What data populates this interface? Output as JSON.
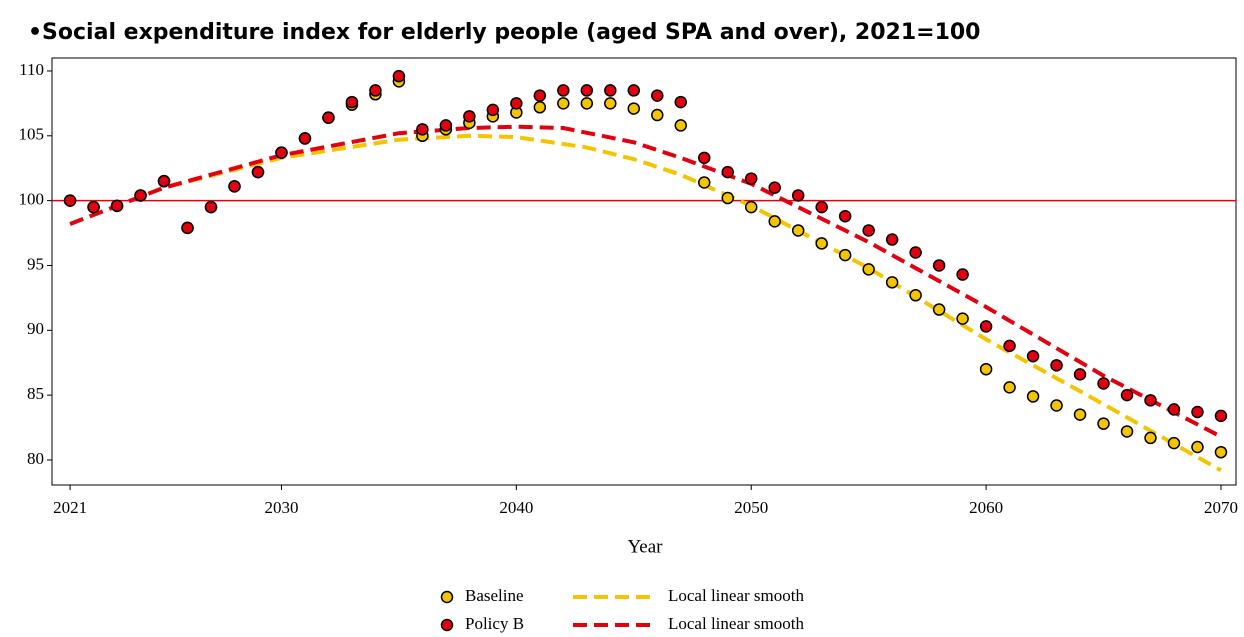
{
  "chart_data": {
    "type": "scatter",
    "title": "•Social expenditure index for elderly people (aged SPA and over), 2021=100",
    "xlabel": "Year",
    "x": [
      2021,
      2022,
      2023,
      2024,
      2025,
      2026,
      2027,
      2028,
      2029,
      2030,
      2031,
      2032,
      2033,
      2034,
      2035,
      2036,
      2037,
      2038,
      2039,
      2040,
      2041,
      2042,
      2043,
      2044,
      2045,
      2046,
      2047,
      2048,
      2049,
      2050,
      2051,
      2052,
      2053,
      2054,
      2055,
      2056,
      2057,
      2058,
      2059,
      2060,
      2061,
      2062,
      2063,
      2064,
      2065,
      2066,
      2067,
      2068,
      2069,
      2070
    ],
    "series": [
      {
        "name": "Baseline",
        "type": "scatter",
        "color": "#f5c400",
        "values": [
          100,
          99.5,
          99.6,
          100.4,
          101.5,
          97.9,
          99.5,
          101.1,
          102.2,
          103.7,
          104.8,
          106.4,
          107.4,
          108.2,
          109.2,
          105.0,
          105.5,
          106.0,
          106.5,
          106.8,
          107.2,
          107.5,
          107.5,
          107.5,
          107.1,
          106.6,
          105.8,
          101.4,
          100.2,
          99.5,
          98.4,
          97.7,
          96.7,
          95.8,
          94.7,
          93.7,
          92.7,
          91.6,
          90.9,
          87.0,
          85.6,
          84.9,
          84.2,
          83.5,
          82.8,
          82.2,
          81.7,
          81.3,
          81.0,
          80.6
        ]
      },
      {
        "name": "Policy B",
        "type": "scatter",
        "color": "#e3000f",
        "values": [
          100,
          99.5,
          99.6,
          100.4,
          101.5,
          97.9,
          99.5,
          101.1,
          102.2,
          103.7,
          104.8,
          106.4,
          107.6,
          108.5,
          109.6,
          105.5,
          105.8,
          106.5,
          107.0,
          107.5,
          108.1,
          108.5,
          108.5,
          108.5,
          108.5,
          108.1,
          107.6,
          103.3,
          102.2,
          101.7,
          101.0,
          100.4,
          99.5,
          98.8,
          97.7,
          97.0,
          96.0,
          95.0,
          94.3,
          90.3,
          88.8,
          88.0,
          87.3,
          86.6,
          85.9,
          85.0,
          84.6,
          83.9,
          83.7,
          83.4
        ]
      },
      {
        "name": "Local linear smooth",
        "type": "line",
        "color": "#f5c400",
        "x": [
          2021,
          2025,
          2030,
          2035,
          2038,
          2040,
          2043,
          2045,
          2047,
          2050,
          2055,
          2060,
          2065,
          2070
        ],
        "values": [
          98.2,
          101.0,
          103.3,
          104.7,
          105.0,
          104.9,
          104.1,
          103.2,
          102.0,
          99.6,
          94.8,
          89.3,
          84.3,
          79.2
        ]
      },
      {
        "name": "Local linear smooth",
        "type": "line",
        "color": "#e3000f",
        "x": [
          2021,
          2025,
          2030,
          2035,
          2038,
          2040,
          2042,
          2045,
          2047,
          2050,
          2055,
          2060,
          2065,
          2070
        ],
        "values": [
          98.2,
          101.0,
          103.5,
          105.2,
          105.6,
          105.7,
          105.6,
          104.5,
          103.3,
          101.3,
          96.8,
          91.8,
          86.5,
          81.8
        ]
      }
    ],
    "hline": {
      "value": 100,
      "color": "#e3000f"
    },
    "xlim": [
      2020.23,
      2070.64
    ],
    "ylim": [
      78.07,
      111.0
    ],
    "xticks": [
      2021,
      2030,
      2040,
      2050,
      2060,
      2070
    ],
    "yticks": [
      80,
      85,
      90,
      95,
      100,
      105,
      110
    ],
    "grid": false
  }
}
